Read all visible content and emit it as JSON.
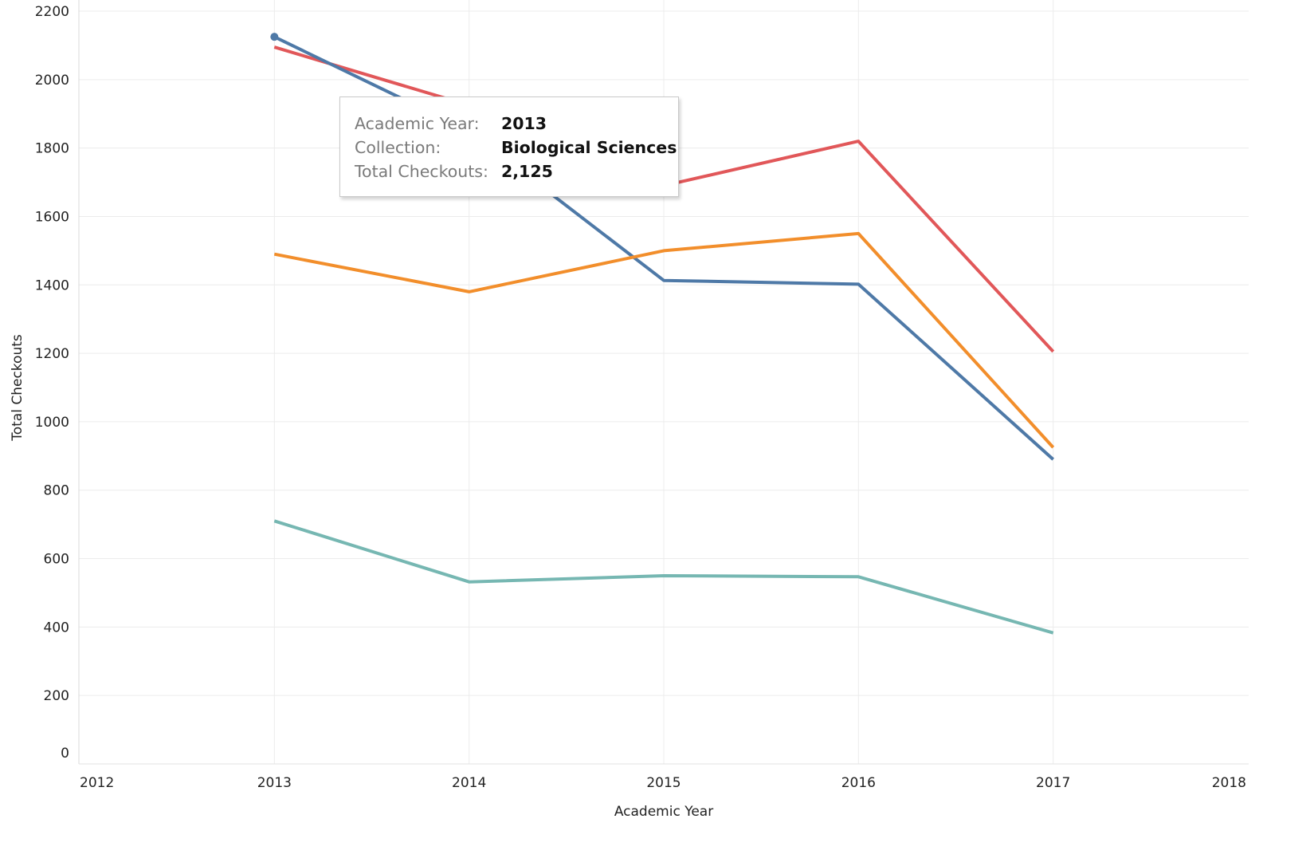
{
  "chart_data": {
    "type": "line",
    "title": "",
    "xlabel": "Academic Year",
    "ylabel": "Total Checkouts",
    "x_ticks": [
      "2012",
      "2013",
      "2014",
      "2015",
      "2016",
      "2017",
      "2018"
    ],
    "y_ticks": [
      "0",
      "200",
      "400",
      "600",
      "800",
      "1000",
      "1200",
      "1400",
      "1600",
      "1800",
      "2000",
      "2200"
    ],
    "xlim": [
      2012,
      2018
    ],
    "ylim": [
      0,
      2200
    ],
    "grid": true,
    "legend": "none",
    "x": [
      2013,
      2014,
      2015,
      2016,
      2017
    ],
    "series": [
      {
        "color": "#e15759",
        "values": [
          2095,
          1925,
          1690,
          1820,
          1205
        ]
      },
      {
        "color": "#4e79a7",
        "values": [
          2125,
          1850,
          1413,
          1402,
          890
        ]
      },
      {
        "color": "#f28e2b",
        "values": [
          1490,
          1380,
          1500,
          1550,
          925
        ]
      },
      {
        "color": "#76b7b2",
        "values": [
          710,
          532,
          550,
          547,
          383
        ]
      }
    ],
    "highlight": {
      "series_index": 1,
      "point_index": 0
    }
  },
  "tooltip": {
    "rows": [
      {
        "key": "Academic Year:",
        "value": "2013"
      },
      {
        "key": "Collection:",
        "value": "Biological Sciences"
      },
      {
        "key": "Total Checkouts:",
        "value": "2,125"
      }
    ]
  }
}
